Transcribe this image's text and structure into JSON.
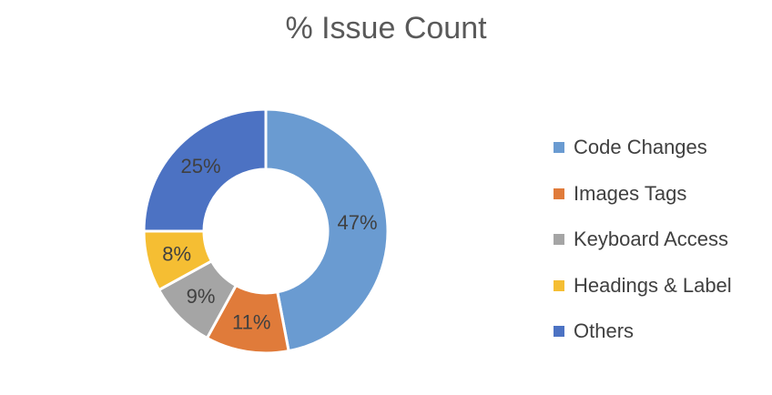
{
  "chart_data": {
    "type": "pie",
    "variant": "donut",
    "title": "% Issue Count",
    "categories": [
      "Code Changes",
      "Images Tags",
      "Keyboard Access",
      "Headings & Label",
      "Others"
    ],
    "values": [
      47,
      11,
      9,
      8,
      25
    ],
    "value_labels": [
      "47%",
      "11%",
      "9%",
      "8%",
      "25%"
    ],
    "colors": [
      "#6a9bd1",
      "#e07b3a",
      "#a5a5a5",
      "#f5be33",
      "#4c72c3"
    ],
    "legend_position": "right",
    "start_angle_deg": 0,
    "direction": "clockwise"
  }
}
